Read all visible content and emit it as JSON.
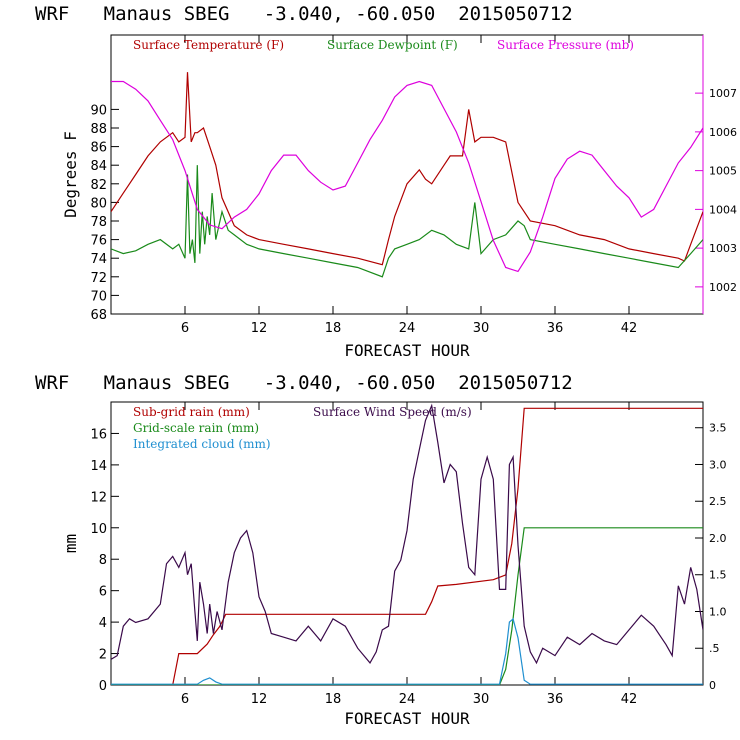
{
  "chart_data": [
    {
      "type": "line",
      "title": "WRF   Manaus SBEG   -3.040, -60.050  2015050712",
      "xlabel": "FORECAST HOUR",
      "ylabel": "Degrees F",
      "xlim": [
        0,
        48
      ],
      "ylim": [
        68,
        98
      ],
      "y2lim": [
        1001.3,
        1008.5
      ],
      "xticks": [
        6,
        12,
        18,
        24,
        30,
        36,
        42
      ],
      "yticks": [
        68,
        70,
        72,
        74,
        76,
        78,
        80,
        82,
        84,
        86,
        88,
        90
      ],
      "y2ticks": [
        1002,
        1003,
        1004,
        1005,
        1006,
        1007
      ],
      "legend_position": "top",
      "series": [
        {
          "name": "Surface Temperature (F)",
          "color": "#b00000",
          "axis": "left",
          "x": [
            0,
            1,
            2,
            3,
            4,
            5,
            5.5,
            6,
            6.2,
            6.5,
            6.8,
            7,
            7.5,
            8,
            8.5,
            9,
            10,
            11,
            12,
            14,
            16,
            18,
            20,
            22,
            22.5,
            23,
            24,
            25,
            25.5,
            26,
            27,
            27.5,
            28,
            28.5,
            29,
            29.5,
            30,
            31,
            32,
            33,
            34,
            36,
            38,
            40,
            42,
            44,
            46,
            46.5,
            47,
            48
          ],
          "y": [
            79,
            81,
            83,
            85,
            86.5,
            87.5,
            86.5,
            87,
            94,
            86.5,
            87.5,
            87.5,
            88,
            86,
            84,
            80.5,
            77.5,
            76.5,
            76,
            75.5,
            75,
            74.5,
            74,
            73.3,
            76,
            78.5,
            82,
            83.5,
            82.5,
            82,
            84,
            85,
            85,
            85,
            90,
            86.5,
            87,
            87,
            86.5,
            80,
            78,
            77.5,
            76.5,
            76,
            75,
            74.5,
            74,
            73.7,
            75.5,
            79
          ]
        },
        {
          "name": "Surface Dewpoint (F)",
          "color": "#1a8a1a",
          "axis": "left",
          "x": [
            0,
            1,
            2,
            3,
            4,
            5,
            5.5,
            6,
            6.2,
            6.4,
            6.6,
            6.8,
            7,
            7.2,
            7.4,
            7.6,
            7.8,
            8,
            8.2,
            8.5,
            9,
            9.5,
            10,
            11,
            12,
            14,
            16,
            18,
            20,
            22,
            22.5,
            23,
            24,
            25,
            26,
            27,
            28,
            29,
            29.5,
            30,
            31,
            32,
            33,
            33.5,
            34,
            36,
            38,
            40,
            42,
            44,
            46,
            47,
            48
          ],
          "y": [
            75,
            74.5,
            74.8,
            75.5,
            76,
            75,
            75.5,
            74,
            83,
            74.5,
            76,
            73.5,
            84,
            74.5,
            79,
            75.5,
            78.5,
            76.5,
            81,
            76,
            79,
            77,
            76.5,
            75.5,
            75,
            74.5,
            74,
            73.5,
            73,
            72,
            74,
            75,
            75.5,
            76,
            77,
            76.5,
            75.5,
            75,
            80,
            74.5,
            76,
            76.5,
            78,
            77.5,
            76,
            75.5,
            75,
            74.5,
            74,
            73.5,
            73,
            74.5,
            76
          ]
        },
        {
          "name": "Surface Pressure (mb)",
          "color": "#dd00dd",
          "axis": "right",
          "x": [
            0,
            1,
            2,
            3,
            4,
            5,
            6,
            7,
            8,
            9,
            10,
            11,
            12,
            13,
            14,
            15,
            16,
            17,
            18,
            19,
            20,
            21,
            22,
            23,
            24,
            25,
            26,
            27,
            28,
            29,
            30,
            31,
            32,
            33,
            34,
            35,
            36,
            37,
            38,
            39,
            40,
            41,
            42,
            43,
            44,
            45,
            46,
            47,
            48
          ],
          "y": [
            1007.3,
            1007.3,
            1007.1,
            1006.8,
            1006.3,
            1005.8,
            1005.0,
            1004.0,
            1003.6,
            1003.5,
            1003.8,
            1004.0,
            1004.4,
            1005.0,
            1005.4,
            1005.4,
            1005.0,
            1004.7,
            1004.5,
            1004.6,
            1005.2,
            1005.8,
            1006.3,
            1006.9,
            1007.2,
            1007.3,
            1007.2,
            1006.6,
            1006.0,
            1005.2,
            1004.2,
            1003.2,
            1002.5,
            1002.4,
            1002.9,
            1003.8,
            1004.8,
            1005.3,
            1005.5,
            1005.4,
            1005.0,
            1004.6,
            1004.3,
            1003.8,
            1004.0,
            1004.6,
            1005.2,
            1005.6,
            1006.1
          ]
        }
      ]
    },
    {
      "type": "line",
      "title": "WRF   Manaus SBEG   -3.040, -60.050  2015050712",
      "xlabel": "FORECAST HOUR",
      "ylabel": "mm",
      "xlim": [
        0,
        48
      ],
      "ylim": [
        0,
        18
      ],
      "y2lim": [
        0,
        3.85
      ],
      "xticks": [
        6,
        12,
        18,
        24,
        30,
        36,
        42
      ],
      "yticks": [
        0,
        2,
        4,
        6,
        8,
        10,
        12,
        14,
        16
      ],
      "y2ticks": [
        0,
        0.5,
        1.0,
        1.5,
        2.0,
        2.5,
        3.0,
        3.5
      ],
      "y2ticklabels": [
        "0",
        ".5",
        "1.0",
        "1.5",
        "2.0",
        "2.5",
        "3.0",
        "3.5"
      ],
      "legend_position": "top-left",
      "series": [
        {
          "name": "Sub-grid rain (mm)",
          "color": "#b00000",
          "axis": "left",
          "x": [
            0,
            5,
            5.5,
            7,
            7.8,
            8.3,
            8.8,
            9,
            9.3,
            22,
            24,
            25.5,
            26,
            26.5,
            28,
            31,
            32,
            32.5,
            33,
            33.5,
            48
          ],
          "y": [
            0,
            0,
            2,
            2,
            2.6,
            3.2,
            3.7,
            4.0,
            4.5,
            4.5,
            4.5,
            4.5,
            5.3,
            6.3,
            6.4,
            6.7,
            7.0,
            9.0,
            12.5,
            17.6,
            17.6
          ]
        },
        {
          "name": "Grid-scale rain (mm)",
          "color": "#1a8a1a",
          "axis": "left",
          "x": [
            0,
            31.5,
            32,
            32.5,
            33,
            33.5,
            48
          ],
          "y": [
            0,
            0,
            1.0,
            3.5,
            7.0,
            10.0,
            10.0
          ]
        },
        {
          "name": "Integrated cloud (mm)",
          "color": "#1f8fd0",
          "axis": "left",
          "x": [
            0,
            7,
            7.5,
            8,
            8.5,
            9,
            31.5,
            32,
            32.3,
            32.6,
            33,
            33.5,
            34,
            48
          ],
          "y": [
            0.05,
            0.05,
            0.3,
            0.45,
            0.2,
            0.05,
            0.05,
            2.0,
            4.0,
            4.2,
            3.0,
            0.3,
            0.05,
            0.05
          ]
        },
        {
          "name": "Surface Wind Speed (m/s)",
          "color": "#3a0a4a",
          "axis": "right",
          "x": [
            0,
            0.5,
            1,
            1.5,
            2,
            3,
            4,
            4.5,
            5,
            5.5,
            6,
            6.2,
            6.5,
            6.8,
            7,
            7.2,
            7.5,
            7.8,
            8,
            8.3,
            8.6,
            9,
            9.5,
            10,
            10.5,
            11,
            11.5,
            12,
            12.5,
            13,
            14,
            15,
            16,
            17,
            18,
            19,
            20,
            21,
            21.5,
            22,
            22.5,
            23,
            23.5,
            24,
            24.5,
            25,
            25.5,
            26,
            26.5,
            27,
            27.5,
            28,
            28.5,
            29,
            29.5,
            30,
            30.5,
            31,
            31.5,
            32,
            32.3,
            32.6,
            33,
            33.5,
            34,
            34.5,
            35,
            36,
            37,
            38,
            39,
            40,
            41,
            42,
            43,
            44,
            45,
            45.5,
            46,
            46.5,
            47,
            47.5,
            48
          ],
          "y": [
            0.35,
            0.4,
            0.8,
            0.9,
            0.85,
            0.9,
            1.1,
            1.65,
            1.75,
            1.6,
            1.8,
            1.5,
            1.65,
            1.0,
            0.6,
            1.4,
            1.1,
            0.7,
            1.1,
            0.7,
            1.0,
            0.75,
            1.4,
            1.8,
            2.0,
            2.1,
            1.8,
            1.2,
            1.0,
            0.7,
            0.65,
            0.6,
            0.8,
            0.6,
            0.9,
            0.8,
            0.5,
            0.3,
            0.45,
            0.75,
            0.8,
            1.55,
            1.7,
            2.1,
            2.8,
            3.2,
            3.6,
            3.8,
            3.3,
            2.75,
            3.0,
            2.9,
            2.2,
            1.6,
            1.5,
            2.8,
            3.1,
            2.8,
            1.3,
            1.3,
            3.0,
            3.1,
            1.9,
            0.8,
            0.45,
            0.3,
            0.5,
            0.4,
            0.65,
            0.55,
            0.7,
            0.6,
            0.55,
            0.75,
            0.95,
            0.8,
            0.55,
            0.4,
            1.35,
            1.1,
            1.6,
            1.3,
            0.75
          ]
        }
      ]
    }
  ]
}
